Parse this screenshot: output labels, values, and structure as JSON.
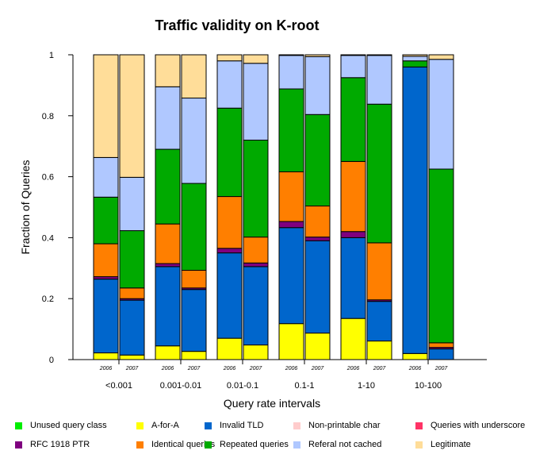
{
  "chart_data": {
    "type": "bar",
    "title": "Traffic validity on K-root",
    "xlabel": "Query rate intervals",
    "ylabel": "Fraction of Queries",
    "ylim": [
      0,
      1
    ],
    "yticks": [
      "0",
      "0.2",
      "0.4",
      "0.6",
      "0.8",
      "1"
    ],
    "groups": [
      {
        "label": "<0.001",
        "bars": [
          "2006",
          "2007"
        ]
      },
      {
        "label": "0.001-0.01",
        "bars": [
          "2006",
          "2007"
        ]
      },
      {
        "label": "0.01-0.1",
        "bars": [
          "2006",
          "2007"
        ]
      },
      {
        "label": "0.1-1",
        "bars": [
          "2006",
          "2007"
        ]
      },
      {
        "label": "1-10",
        "bars": [
          "2006",
          "2007"
        ]
      },
      {
        "label": "10-100",
        "bars": [
          "2006",
          "2007"
        ]
      }
    ],
    "categories": [
      "<0.001 2006",
      "<0.001 2007",
      "0.001-0.01 2006",
      "0.001-0.01 2007",
      "0.01-0.1 2006",
      "0.01-0.1 2007",
      "0.1-1 2006",
      "0.1-1 2007",
      "1-10 2006",
      "1-10 2007",
      "10-100 2006",
      "10-100 2007"
    ],
    "series": [
      {
        "name": "Unused query class",
        "color": "#00ee00",
        "values": [
          0,
          0,
          0,
          0,
          0,
          0,
          0,
          0,
          0,
          0,
          0,
          0
        ]
      },
      {
        "name": "A-for-A",
        "color": "#ffff00",
        "values": [
          0.022,
          0.015,
          0.045,
          0.027,
          0.07,
          0.048,
          0.118,
          0.087,
          0.135,
          0.061,
          0.02,
          0
        ]
      },
      {
        "name": "Invalid TLD",
        "color": "#0066cc",
        "values": [
          0.242,
          0.18,
          0.26,
          0.203,
          0.28,
          0.257,
          0.315,
          0.303,
          0.265,
          0.13,
          0.94,
          0.035
        ]
      },
      {
        "name": "Non-printable char",
        "color": "#ffcccc",
        "values": [
          0,
          0,
          0,
          0,
          0,
          0,
          0,
          0,
          0,
          0,
          0,
          0
        ]
      },
      {
        "name": "Queries with underscore",
        "color": "#ff3366",
        "values": [
          0,
          0,
          0,
          0,
          0,
          0,
          0,
          0,
          0,
          0,
          0,
          0
        ]
      },
      {
        "name": "RFC 1918 PTR",
        "color": "#7f007f",
        "values": [
          0.008,
          0.005,
          0.01,
          0.005,
          0.015,
          0.012,
          0.02,
          0.012,
          0.02,
          0.005,
          0,
          0.005
        ]
      },
      {
        "name": "Identical queries",
        "color": "#ff7f00",
        "values": [
          0.108,
          0.035,
          0.13,
          0.058,
          0.17,
          0.085,
          0.163,
          0.102,
          0.23,
          0.187,
          0,
          0.015
        ]
      },
      {
        "name": "Repeated queries",
        "color": "#00aa00",
        "values": [
          0.153,
          0.188,
          0.245,
          0.285,
          0.29,
          0.318,
          0.272,
          0.3,
          0.275,
          0.455,
          0.02,
          0.57
        ]
      },
      {
        "name": "Referal not cached",
        "color": "#b0c8ff",
        "values": [
          0.13,
          0.175,
          0.205,
          0.28,
          0.155,
          0.252,
          0.11,
          0.19,
          0.073,
          0.16,
          0.015,
          0.36
        ]
      },
      {
        "name": "Legitimate",
        "color": "#ffdd99",
        "values": [
          0.337,
          0.402,
          0.105,
          0.142,
          0.02,
          0.028,
          0.002,
          0.006,
          0.002,
          0.002,
          0.005,
          0.015
        ]
      }
    ],
    "grid": false,
    "legend_position": "bottom"
  }
}
